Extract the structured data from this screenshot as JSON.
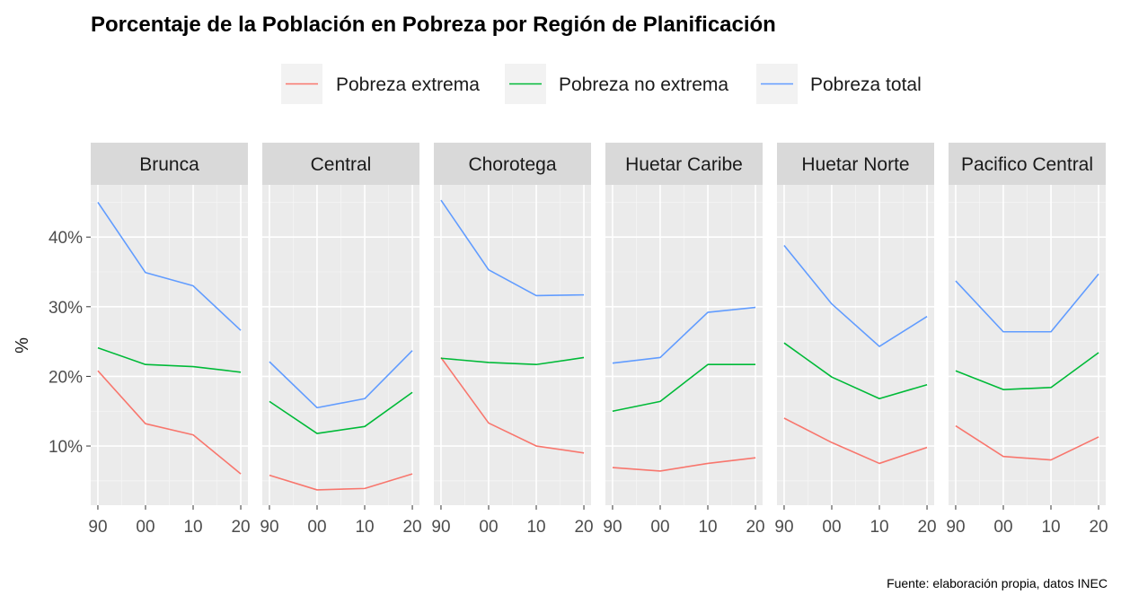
{
  "chart_data": {
    "type": "line",
    "title": "Porcentaje de la Población en Pobreza por Región de Planificación",
    "ylabel": "%",
    "caption": "Fuente: elaboración propia, datos INEC",
    "x_tick_labels": [
      "90",
      "00",
      "10",
      "20"
    ],
    "x": [
      1990,
      2000,
      2010,
      2020
    ],
    "xlim": [
      1988.5,
      2021.5
    ],
    "ylim": [
      1.5,
      47.5
    ],
    "y_ticks": [
      10,
      20,
      30,
      40
    ],
    "y_tick_labels": [
      "10%",
      "20%",
      "30%",
      "40%"
    ],
    "grid": true,
    "legend_position": "top",
    "legend": [
      {
        "name": "Pobreza extrema",
        "color": "#F8766D"
      },
      {
        "name": "Pobreza no extrema",
        "color": "#00BA38"
      },
      {
        "name": "Pobreza total",
        "color": "#619CFF"
      }
    ],
    "panels": [
      {
        "region": "Brunca",
        "series": {
          "Pobreza extrema": [
            20.8,
            13.2,
            11.6,
            6.0
          ],
          "Pobreza no extrema": [
            24.1,
            21.7,
            21.4,
            20.6
          ],
          "Pobreza total": [
            45.0,
            34.9,
            33.0,
            26.6
          ]
        }
      },
      {
        "region": "Central",
        "series": {
          "Pobreza extrema": [
            5.8,
            3.7,
            3.9,
            6.0
          ],
          "Pobreza no extrema": [
            16.4,
            11.8,
            12.8,
            17.7
          ],
          "Pobreza total": [
            22.1,
            15.5,
            16.8,
            23.7
          ]
        }
      },
      {
        "region": "Chorotega",
        "series": {
          "Pobreza extrema": [
            22.7,
            13.3,
            10.0,
            9.0
          ],
          "Pobreza no extrema": [
            22.6,
            22.0,
            21.7,
            22.7
          ],
          "Pobreza total": [
            45.3,
            35.3,
            31.6,
            31.7
          ]
        }
      },
      {
        "region": "Huetar Caribe",
        "series": {
          "Pobreza extrema": [
            6.9,
            6.4,
            7.5,
            8.3
          ],
          "Pobreza no extrema": [
            15.0,
            16.4,
            21.7,
            21.7
          ],
          "Pobreza total": [
            21.9,
            22.7,
            29.2,
            29.9
          ]
        }
      },
      {
        "region": "Huetar Norte",
        "series": {
          "Pobreza extrema": [
            14.0,
            10.5,
            7.5,
            9.8
          ],
          "Pobreza no extrema": [
            24.8,
            19.9,
            16.8,
            18.8
          ],
          "Pobreza total": [
            38.8,
            30.4,
            24.3,
            28.6
          ]
        }
      },
      {
        "region": "Pacifico Central",
        "series": {
          "Pobreza extrema": [
            12.9,
            8.5,
            8.0,
            11.3
          ],
          "Pobreza no extrema": [
            20.8,
            18.1,
            18.4,
            23.4
          ],
          "Pobreza total": [
            33.7,
            26.4,
            26.4,
            34.7
          ]
        }
      }
    ]
  }
}
